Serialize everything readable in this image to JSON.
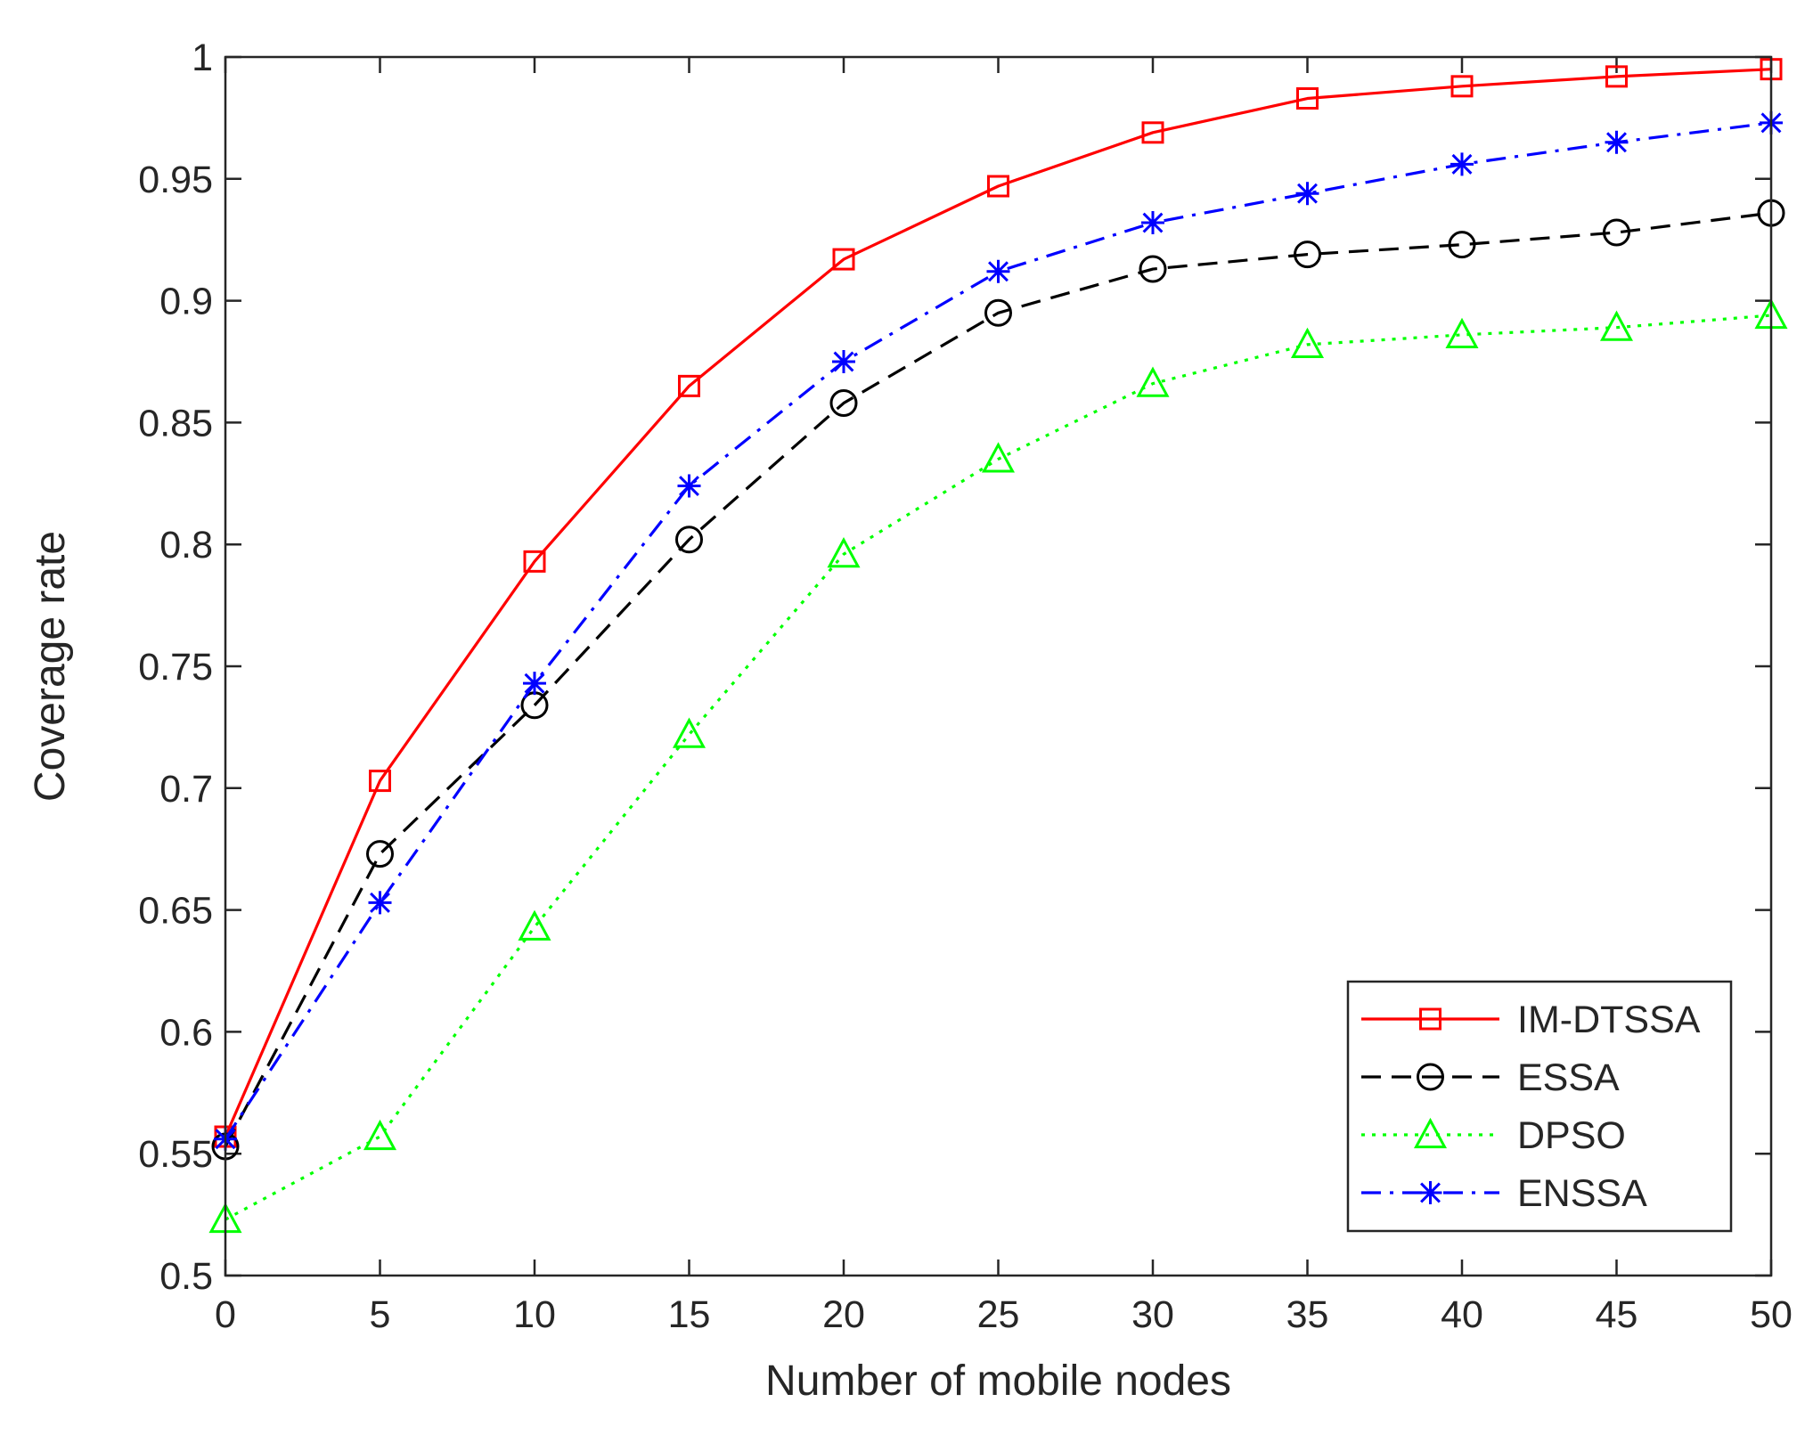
{
  "chart_data": {
    "type": "line",
    "title": "",
    "xlabel": "Number of mobile nodes",
    "ylabel": "Coverage rate",
    "xlim": [
      0,
      50
    ],
    "ylim": [
      0.5,
      1
    ],
    "xticks": [
      "0",
      "5",
      "10",
      "15",
      "20",
      "25",
      "30",
      "35",
      "40",
      "45",
      "50"
    ],
    "yticks": [
      "0.5",
      "0.55",
      "0.6",
      "0.65",
      "0.7",
      "0.75",
      "0.8",
      "0.85",
      "0.9",
      "0.95",
      "1"
    ],
    "grid": false,
    "box": true,
    "legend_position": "bottom-right",
    "x": [
      0,
      5,
      10,
      15,
      20,
      25,
      30,
      35,
      40,
      45,
      50
    ],
    "series": [
      {
        "name": "IM-DTSSA",
        "color": "#ff0000",
        "line_style": "solid",
        "marker": "square",
        "values": [
          0.557,
          0.703,
          0.793,
          0.865,
          0.917,
          0.947,
          0.969,
          0.983,
          0.988,
          0.992,
          0.995
        ]
      },
      {
        "name": "ESSA",
        "color": "#000000",
        "line_style": "dashed",
        "marker": "circle",
        "values": [
          0.553,
          0.673,
          0.734,
          0.802,
          0.858,
          0.895,
          0.913,
          0.919,
          0.923,
          0.928,
          0.936
        ]
      },
      {
        "name": "DPSO",
        "color": "#00ff00",
        "line_style": "dotted",
        "marker": "triangle",
        "values": [
          0.523,
          0.557,
          0.643,
          0.722,
          0.796,
          0.835,
          0.866,
          0.882,
          0.886,
          0.889,
          0.894
        ]
      },
      {
        "name": "ENSSA",
        "color": "#0000ff",
        "line_style": "dashdot",
        "marker": "asterisk",
        "values": [
          0.556,
          0.653,
          0.743,
          0.824,
          0.875,
          0.912,
          0.932,
          0.944,
          0.956,
          0.965,
          0.973
        ]
      }
    ]
  }
}
